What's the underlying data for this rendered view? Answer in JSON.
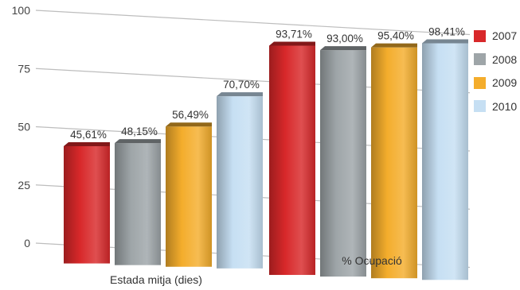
{
  "chart_data": {
    "type": "bar",
    "categories": [
      "Estada mitja (dies)",
      "% Ocupació"
    ],
    "series": [
      {
        "name": "2007",
        "color": "#d8282a",
        "values": [
          45.61,
          93.71
        ],
        "labels": [
          "45,61%",
          "93,71%"
        ]
      },
      {
        "name": "2008",
        "color": "#9ea5a8",
        "values": [
          48.15,
          93.0
        ],
        "labels": [
          "48,15%",
          "93,00%"
        ]
      },
      {
        "name": "2009",
        "color": "#f4ad2c",
        "values": [
          56.49,
          95.4
        ],
        "labels": [
          "56,49%",
          "95,40%"
        ]
      },
      {
        "name": "2010",
        "color": "#c6dff3",
        "values": [
          70.7,
          98.41
        ],
        "labels": [
          "70,70%",
          "98,41%"
        ]
      }
    ],
    "yticks": [
      "100",
      "75",
      "50",
      "25",
      "0"
    ],
    "ylim": [
      0,
      100
    ],
    "legend_position": "right",
    "grid": true
  }
}
